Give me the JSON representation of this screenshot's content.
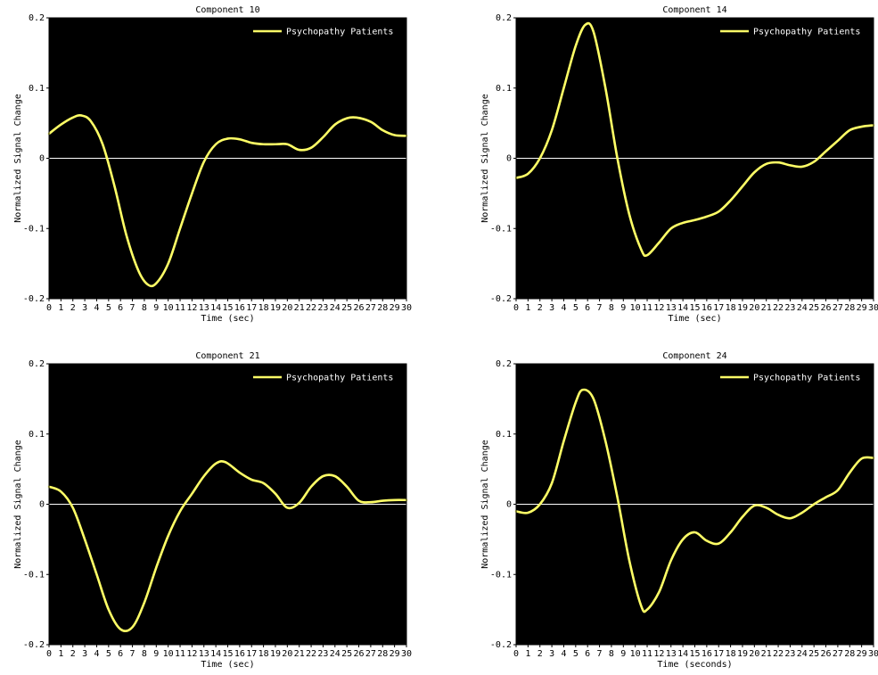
{
  "chart_data": [
    {
      "type": "line",
      "title": "Component 10",
      "xlabel": "Time (sec)",
      "ylabel": "Normalized Signal Change",
      "xlim": [
        0,
        30
      ],
      "ylim": [
        -0.2,
        0.2
      ],
      "xticks": [
        "0",
        "1",
        "2",
        "3",
        "4",
        "5",
        "6",
        "7",
        "8",
        "9",
        "10",
        "11",
        "12",
        "13",
        "14",
        "15",
        "16",
        "17",
        "18",
        "19",
        "20",
        "21",
        "22",
        "23",
        "24",
        "25",
        "26",
        "27",
        "28",
        "29",
        "30"
      ],
      "yticks": [
        "-0.2",
        "-0.1",
        "0",
        "0.1",
        "0.2"
      ],
      "legend_position": "top-right",
      "grid": false,
      "background": "#000000",
      "line_color": "#ffff66",
      "zero_line_color": "#ffffff",
      "series": [
        {
          "name": "Psychopathy Patients",
          "x": [
            0,
            1,
            2,
            2.7,
            3.5,
            4.5,
            5.5,
            6.5,
            7.5,
            8.3,
            9,
            10,
            11,
            12,
            13,
            14,
            15,
            16,
            17,
            18,
            19,
            20,
            21,
            22,
            23,
            24,
            25,
            25.8,
            27,
            28,
            29,
            30
          ],
          "y": [
            0.035,
            0.048,
            0.058,
            0.061,
            0.053,
            0.02,
            -0.04,
            -0.11,
            -0.16,
            -0.18,
            -0.178,
            -0.15,
            -0.1,
            -0.05,
            -0.005,
            0.02,
            0.028,
            0.027,
            0.022,
            0.02,
            0.02,
            0.02,
            0.012,
            0.015,
            0.03,
            0.048,
            0.057,
            0.058,
            0.052,
            0.04,
            0.033,
            0.032
          ]
        }
      ]
    },
    {
      "type": "line",
      "title": "Component 14",
      "xlabel": "Time (sec)",
      "ylabel": "Normalized Signal Change",
      "xlim": [
        0,
        30
      ],
      "ylim": [
        -0.2,
        0.2
      ],
      "xticks": [
        "0",
        "1",
        "2",
        "3",
        "4",
        "5",
        "6",
        "7",
        "8",
        "9",
        "10",
        "11",
        "12",
        "13",
        "14",
        "15",
        "16",
        "17",
        "18",
        "19",
        "20",
        "21",
        "22",
        "23",
        "24",
        "25",
        "26",
        "27",
        "28",
        "29",
        "30"
      ],
      "yticks": [
        "-0.2",
        "-0.1",
        "0",
        "0.1",
        "0.2"
      ],
      "legend_position": "top-right",
      "grid": false,
      "background": "#000000",
      "line_color": "#ffff66",
      "zero_line_color": "#ffffff",
      "series": [
        {
          "name": "Psychopathy Patients",
          "x": [
            0,
            1,
            2,
            3,
            4,
            5,
            5.8,
            6.5,
            7.5,
            8.5,
            9.5,
            10.5,
            11,
            12,
            13,
            14,
            15,
            16,
            17,
            18,
            19,
            20,
            21,
            22,
            23,
            24,
            25,
            26,
            27,
            28,
            29,
            30
          ],
          "y": [
            -0.028,
            -0.022,
            0,
            0.04,
            0.1,
            0.16,
            0.19,
            0.18,
            0.1,
            0,
            -0.08,
            -0.13,
            -0.138,
            -0.12,
            -0.1,
            -0.092,
            -0.088,
            -0.083,
            -0.076,
            -0.06,
            -0.04,
            -0.02,
            -0.008,
            -0.006,
            -0.01,
            -0.012,
            -0.005,
            0.01,
            0.025,
            0.04,
            0.045,
            0.047
          ]
        }
      ]
    },
    {
      "type": "line",
      "title": "Component 21",
      "xlabel": "Time (sec)",
      "ylabel": "Normalized Signal Change",
      "xlim": [
        0,
        30
      ],
      "ylim": [
        -0.2,
        0.2
      ],
      "xticks": [
        "0",
        "1",
        "2",
        "3",
        "4",
        "5",
        "6",
        "7",
        "8",
        "9",
        "10",
        "11",
        "12",
        "13",
        "14",
        "15",
        "16",
        "17",
        "18",
        "19",
        "20",
        "21",
        "22",
        "23",
        "24",
        "25",
        "26",
        "27",
        "28",
        "29",
        "30"
      ],
      "yticks": [
        "-0.2",
        "-0.1",
        "0",
        "0.1",
        "0.2"
      ],
      "legend_position": "top-right",
      "grid": false,
      "background": "#000000",
      "line_color": "#ffff66",
      "zero_line_color": "#ffffff",
      "series": [
        {
          "name": "Psychopathy Patients",
          "x": [
            0,
            1,
            2,
            3,
            4,
            5,
            6,
            7,
            8,
            9,
            10,
            11,
            12,
            13,
            14,
            14.8,
            16,
            17,
            18,
            19,
            20,
            21,
            22,
            23,
            24,
            25,
            26,
            27,
            28,
            29,
            30
          ],
          "y": [
            0.025,
            0.018,
            -0.005,
            -0.05,
            -0.1,
            -0.15,
            -0.178,
            -0.175,
            -0.14,
            -0.09,
            -0.045,
            -0.01,
            0.015,
            0.04,
            0.058,
            0.06,
            0.045,
            0.035,
            0.03,
            0.015,
            -0.005,
            0.002,
            0.025,
            0.04,
            0.04,
            0.025,
            0.005,
            0.003,
            0.005,
            0.006,
            0.006
          ]
        }
      ]
    },
    {
      "type": "line",
      "title": "Component 24",
      "xlabel": "Time (seconds)",
      "ylabel": "Normalized Signal Change",
      "xlim": [
        0,
        30
      ],
      "ylim": [
        -0.2,
        0.2
      ],
      "xticks": [
        "0",
        "1",
        "2",
        "3",
        "4",
        "5",
        "6",
        "7",
        "8",
        "9",
        "10",
        "11",
        "12",
        "13",
        "14",
        "15",
        "16",
        "17",
        "18",
        "19",
        "20",
        "21",
        "22",
        "23",
        "24",
        "25",
        "26",
        "27",
        "28",
        "29",
        "30"
      ],
      "yticks": [
        "-0.2",
        "-0.1",
        "0",
        "0.1",
        "0.2"
      ],
      "legend_position": "top-right",
      "grid": false,
      "background": "#000000",
      "line_color": "#ffff66",
      "zero_line_color": "#ffffff",
      "series": [
        {
          "name": "Psychopathy Patients",
          "x": [
            0,
            1,
            2,
            3,
            4,
            5,
            5.6,
            6.5,
            7.5,
            8.5,
            9.5,
            10.5,
            11,
            12,
            13,
            14,
            15,
            16,
            17,
            18,
            19,
            20,
            21,
            22,
            23,
            24,
            25,
            26,
            27,
            28,
            29,
            30
          ],
          "y": [
            -0.01,
            -0.012,
            0,
            0.03,
            0.09,
            0.145,
            0.163,
            0.15,
            0.09,
            0.01,
            -0.08,
            -0.145,
            -0.15,
            -0.125,
            -0.08,
            -0.05,
            -0.04,
            -0.052,
            -0.056,
            -0.04,
            -0.018,
            -0.002,
            -0.005,
            -0.015,
            -0.02,
            -0.012,
            0,
            0.01,
            0.02,
            0.045,
            0.065,
            0.066
          ]
        }
      ]
    }
  ]
}
